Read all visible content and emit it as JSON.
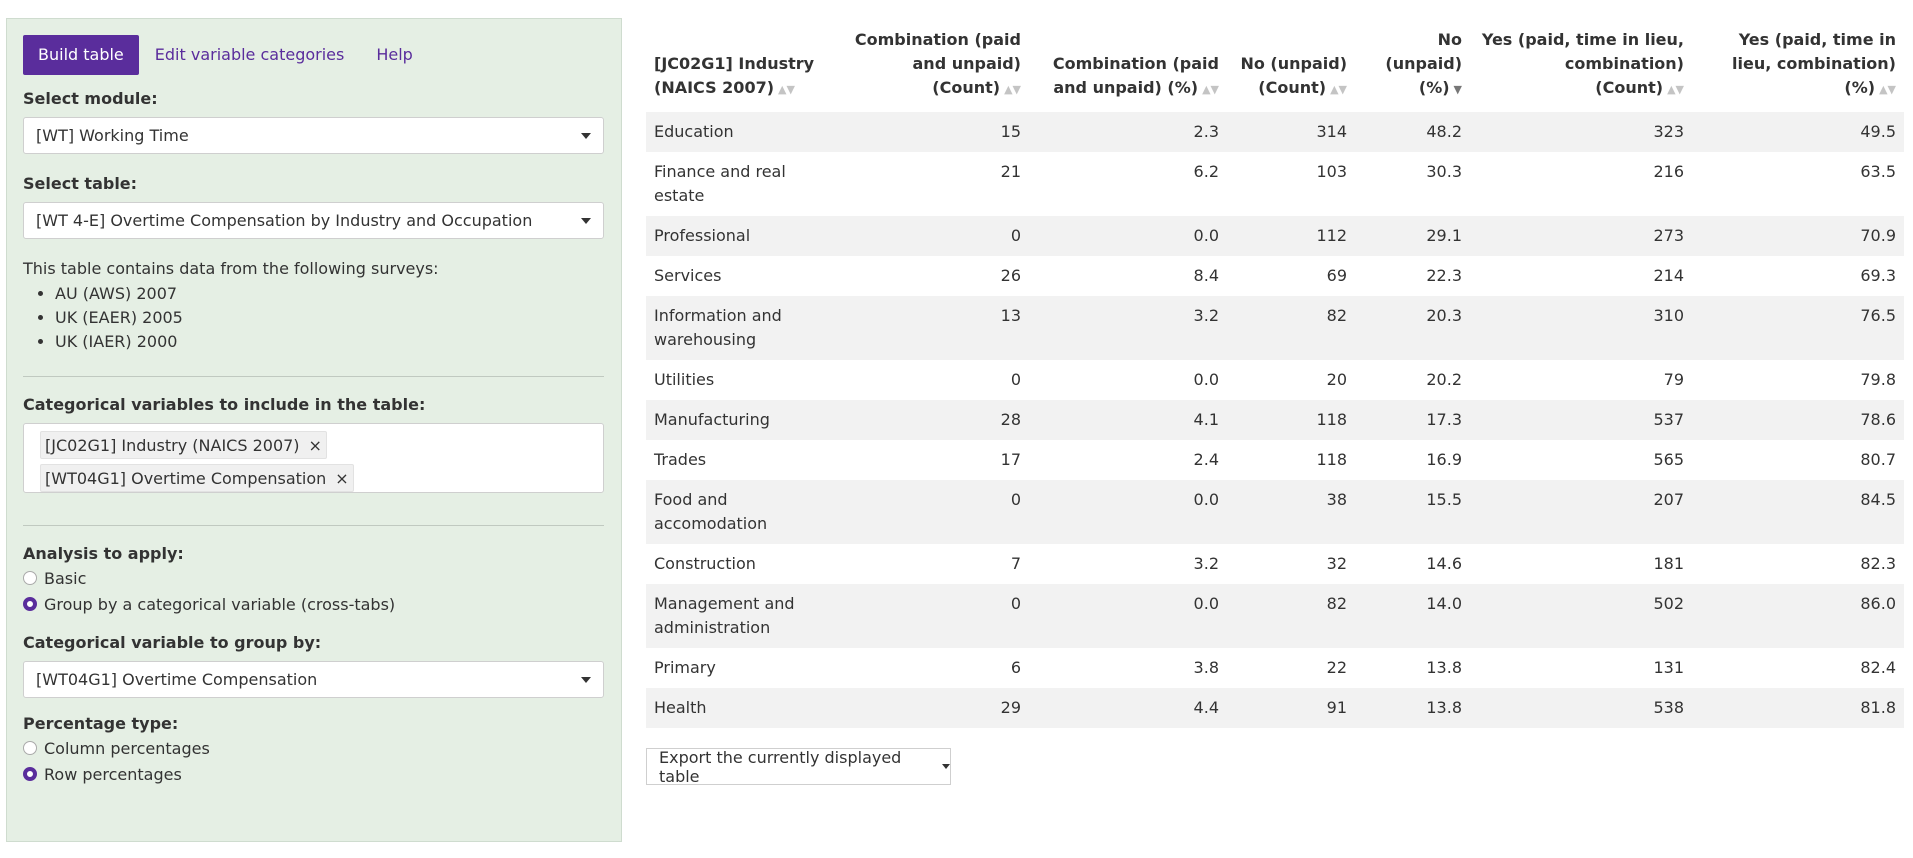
{
  "sidebar": {
    "tabs": [
      {
        "label": "Build table",
        "active": true
      },
      {
        "label": "Edit variable categories",
        "active": false
      },
      {
        "label": "Help",
        "active": false
      }
    ],
    "module_label": "Select module:",
    "module_value": "[WT] Working Time",
    "table_label": "Select table:",
    "table_value": "[WT 4-E] Overtime Compensation by Industry and Occupation",
    "surveys_intro": "This table contains data from the following surveys:",
    "surveys": [
      "AU (AWS) 2007",
      "UK (EAER) 2005",
      "UK (IAER) 2000"
    ],
    "categorical_label": "Categorical variables to include in the table:",
    "categorical_tags": [
      "[JC02G1] Industry (NAICS 2007)",
      "[WT04G1] Overtime Compensation"
    ],
    "tag_remove_glyph": "×",
    "analysis_label": "Analysis to apply:",
    "analysis_options": [
      {
        "label": "Basic",
        "checked": false
      },
      {
        "label": "Group by a categorical variable (cross-tabs)",
        "checked": true
      }
    ],
    "groupby_label": "Categorical variable to group by:",
    "groupby_value": "[WT04G1] Overtime Compensation",
    "percentage_label": "Percentage type:",
    "percentage_options": [
      {
        "label": "Column percentages",
        "checked": false
      },
      {
        "label": "Row percentages",
        "checked": true
      }
    ]
  },
  "table": {
    "headers": [
      "[JC02G1] Industry (NAICS 2007)",
      "Combination (paid and unpaid) (Count)",
      "Combination (paid and unpaid) (%)",
      "No (unpaid) (Count)",
      "No (unpaid) (%)",
      "Yes (paid, time in lieu, combination) (Count)",
      "Yes (paid, time in lieu, combination) (%)"
    ],
    "sort_glyph_idle": "▲▼",
    "sort_glyph_active": "▼",
    "rows": [
      [
        "Education",
        "15",
        "2.3",
        "314",
        "48.2",
        "323",
        "49.5"
      ],
      [
        "Finance and real estate",
        "21",
        "6.2",
        "103",
        "30.3",
        "216",
        "63.5"
      ],
      [
        "Professional",
        "0",
        "0.0",
        "112",
        "29.1",
        "273",
        "70.9"
      ],
      [
        "Services",
        "26",
        "8.4",
        "69",
        "22.3",
        "214",
        "69.3"
      ],
      [
        "Information and warehousing",
        "13",
        "3.2",
        "82",
        "20.3",
        "310",
        "76.5"
      ],
      [
        "Utilities",
        "0",
        "0.0",
        "20",
        "20.2",
        "79",
        "79.8"
      ],
      [
        "Manufacturing",
        "28",
        "4.1",
        "118",
        "17.3",
        "537",
        "78.6"
      ],
      [
        "Trades",
        "17",
        "2.4",
        "118",
        "16.9",
        "565",
        "80.7"
      ],
      [
        "Food and accomodation",
        "0",
        "0.0",
        "38",
        "15.5",
        "207",
        "84.5"
      ],
      [
        "Construction",
        "7",
        "3.2",
        "32",
        "14.6",
        "181",
        "82.3"
      ],
      [
        "Management and administration",
        "0",
        "0.0",
        "82",
        "14.0",
        "502",
        "86.0"
      ],
      [
        "Primary",
        "6",
        "3.8",
        "22",
        "13.8",
        "131",
        "82.4"
      ],
      [
        "Health",
        "29",
        "4.4",
        "91",
        "13.8",
        "538",
        "81.8"
      ]
    ]
  },
  "export_label": "Export the currently displayed table"
}
